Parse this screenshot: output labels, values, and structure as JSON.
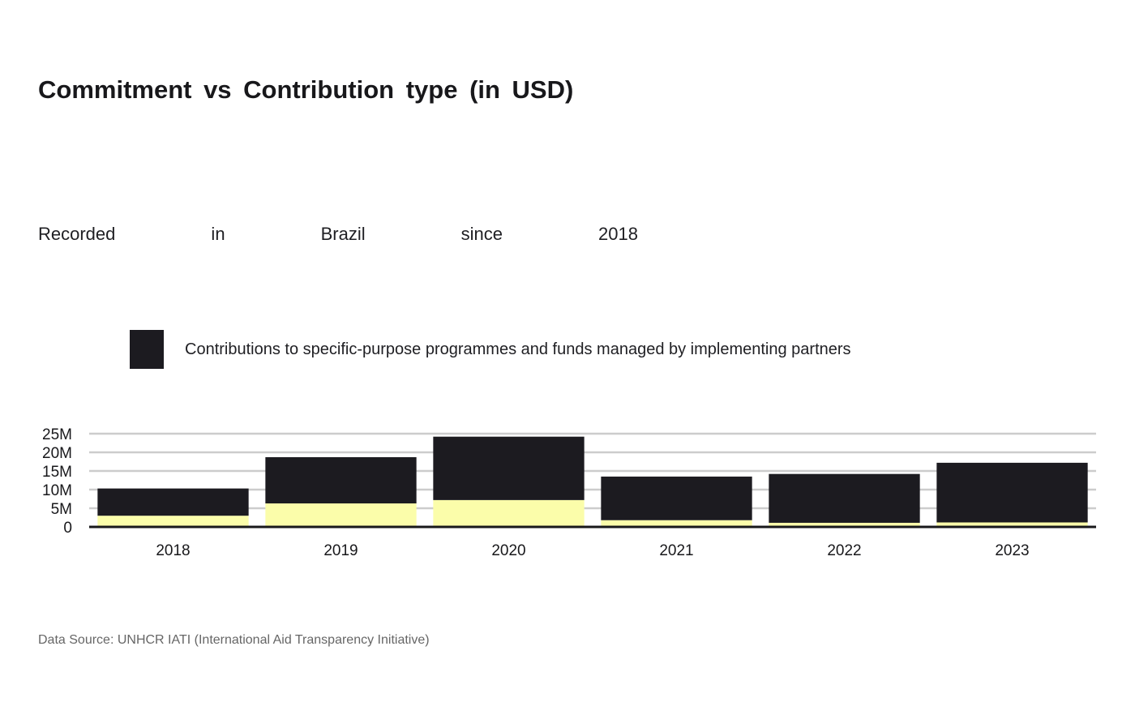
{
  "title": "Commitment vs Contribution type (in USD)",
  "subtitle": "Recorded in Brazil since 2018",
  "legend": {
    "label": "Contributions to specific-purpose programmes and funds managed by implementing partners",
    "color": "#1c1b20"
  },
  "source": "Data Source: UNHCR IATI (International Aid Transparency Initiative)",
  "colors": {
    "contribution": "#1c1b20",
    "commitment": "#fbfdaa",
    "grid": "#cccccc",
    "axis": "#18181b"
  },
  "chart_data": {
    "type": "bar",
    "stacked": true,
    "categories": [
      "2018",
      "2019",
      "2020",
      "2021",
      "2022",
      "2023"
    ],
    "series": [
      {
        "name": "",
        "color": "#fbfdaa",
        "values": [
          3000000,
          6300000,
          7200000,
          1800000,
          1100000,
          1200000
        ]
      },
      {
        "name": "Contributions to specific-purpose programmes and funds managed by implementing partners",
        "color": "#1c1b20",
        "values": [
          7300000,
          12400000,
          17000000,
          11700000,
          13100000,
          16000000
        ]
      }
    ],
    "ylim": [
      0,
      25000000
    ],
    "yticks": [
      0,
      5000000,
      10000000,
      15000000,
      20000000,
      25000000
    ],
    "ytick_labels": [
      "0",
      "5M",
      "10M",
      "15M",
      "20M",
      "25M"
    ],
    "grid": true,
    "legend_position": "top-left"
  }
}
